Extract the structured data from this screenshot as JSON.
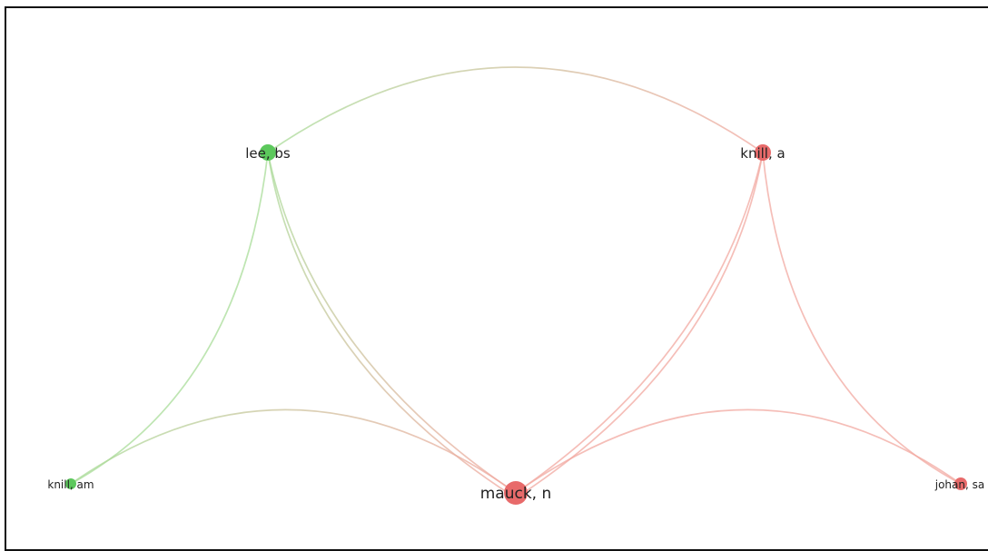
{
  "network": {
    "colors": {
      "green_cluster": "#5cc85c",
      "red_cluster": "#e86a6a",
      "green_edge": "#a8dc98",
      "red_edge": "#f2a8a0",
      "mixed_edge": "#c9b89a"
    },
    "nodes": [
      {
        "id": "lee",
        "label": "lee, bs",
        "cluster": "green",
        "weight": 2
      },
      {
        "id": "knill_a",
        "label": "knill, a",
        "cluster": "red",
        "weight": 2
      },
      {
        "id": "knill_am",
        "label": "knill, am",
        "cluster": "green",
        "weight": 1
      },
      {
        "id": "mauck",
        "label": "mauck, n",
        "cluster": "red",
        "weight": 4
      },
      {
        "id": "johan",
        "label": "johan, sa",
        "cluster": "red",
        "weight": 1
      }
    ],
    "edges": [
      {
        "source": "lee",
        "target": "knill_a"
      },
      {
        "source": "lee",
        "target": "knill_am"
      },
      {
        "source": "lee",
        "target": "mauck"
      },
      {
        "source": "knill_a",
        "target": "mauck"
      },
      {
        "source": "knill_a",
        "target": "johan"
      },
      {
        "source": "knill_am",
        "target": "mauck"
      },
      {
        "source": "mauck",
        "target": "johan"
      }
    ]
  }
}
